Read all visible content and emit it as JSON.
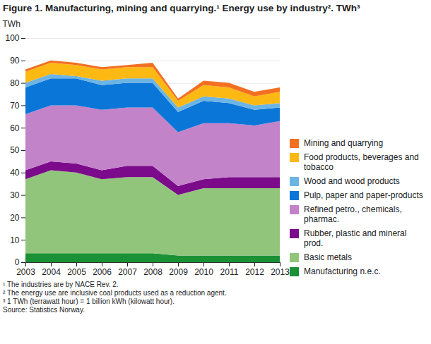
{
  "chart_data": {
    "type": "area",
    "stacked": true,
    "title": "Figure 1. Manufacturing, mining and quarrying.¹ Energy use by industry². TWh³",
    "y_label": "TWh",
    "x": [
      2003,
      2004,
      2005,
      2006,
      2007,
      2008,
      2009,
      2010,
      2011,
      2012,
      2013
    ],
    "xlim": [
      2003,
      2013
    ],
    "xticks": [
      2003,
      2004,
      2005,
      2006,
      2007,
      2008,
      2009,
      2010,
      2011,
      2012,
      2013
    ],
    "ylim": [
      0,
      100
    ],
    "yticks": [
      0,
      10,
      20,
      30,
      40,
      50,
      60,
      70,
      80,
      90,
      100
    ],
    "grid": true,
    "legend": "right",
    "series": [
      {
        "name": "Manufacturing n.e.c.",
        "color": "#1a9134",
        "values": [
          4,
          4,
          4,
          4,
          4,
          4,
          3,
          3,
          3,
          3,
          3
        ]
      },
      {
        "name": "Basic metals",
        "color": "#92c57c",
        "values": [
          33,
          37,
          36,
          33,
          34,
          34,
          27,
          30,
          30,
          30,
          30
        ]
      },
      {
        "name": "Rubber, plastic and mineral prod.",
        "color": "#7b0b8a",
        "values": [
          4,
          4,
          4,
          4,
          5,
          5,
          4,
          4,
          5,
          5,
          5
        ]
      },
      {
        "name": "Refined petro., chemicals, pharmac.",
        "color": "#c283c8",
        "values": [
          25,
          25,
          26,
          27,
          26,
          26,
          24,
          25,
          24,
          23,
          25
        ]
      },
      {
        "name": "Pulp, paper and paper-products",
        "color": "#0a76d8",
        "values": [
          12,
          12,
          12,
          11,
          11,
          11,
          9,
          10,
          9,
          7,
          6
        ]
      },
      {
        "name": "Wood and wood products",
        "color": "#6cb4e4",
        "values": [
          2,
          2,
          1,
          2,
          2,
          2,
          2,
          2,
          2,
          2,
          2
        ]
      },
      {
        "name": "Food products, beverages and tobacco",
        "color": "#fdb913",
        "values": [
          5,
          5,
          5,
          5,
          5,
          5,
          3,
          5,
          5,
          4,
          5
        ]
      },
      {
        "name": "Mining and quarrying",
        "color": "#f37021",
        "values": [
          1,
          1,
          1,
          1,
          1,
          2,
          1,
          2,
          2,
          2,
          2
        ]
      }
    ],
    "notes": [
      "¹ The industries are by NACE Rev. 2.",
      "² The energy use are inclusive coal products used as a reduction agent.",
      "³ 1 TWh (terrawatt hour) = 1 billion kWh (kilowatt hour).",
      "Source: Statistics Norway."
    ]
  }
}
